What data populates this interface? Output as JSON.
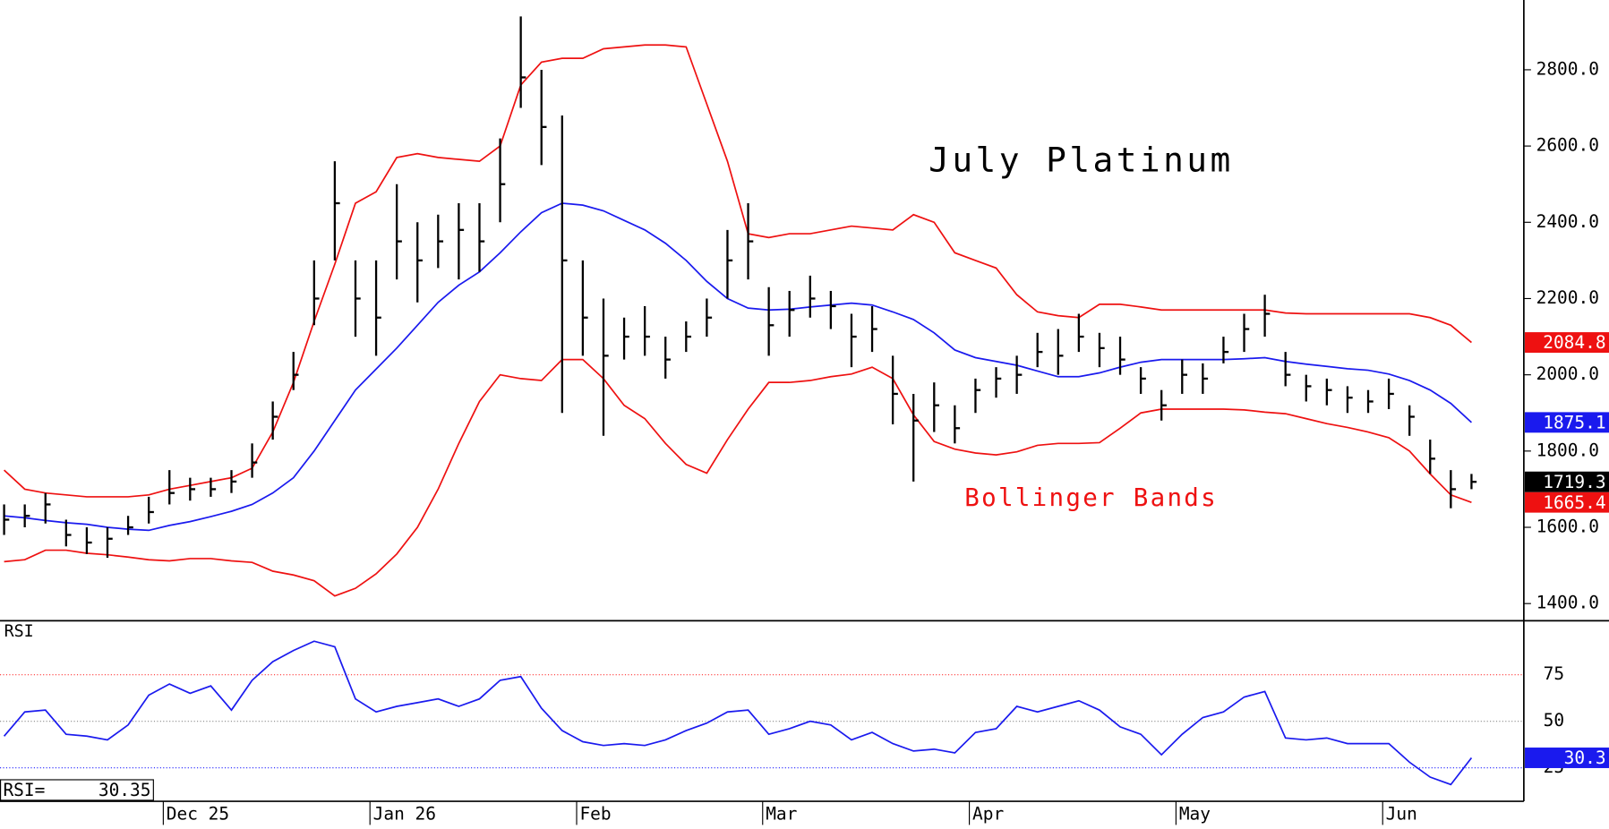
{
  "chart_data": [
    {
      "type": "ohlc",
      "title": "July Platinum",
      "annotation": "Bollinger Bands",
      "annotation_color": "#ee1111",
      "color": "#000000",
      "high": [
        1660,
        1660,
        1690,
        1620,
        1600,
        1600,
        1630,
        1680,
        1750,
        1730,
        1730,
        1750,
        1820,
        1930,
        2060,
        2300,
        2560,
        2300,
        2300,
        2500,
        2400,
        2420,
        2450,
        2450,
        2620,
        2940,
        2800,
        2680,
        2300,
        2200,
        2150,
        2180,
        2100,
        2140,
        2200,
        2380,
        2450,
        2230,
        2220,
        2260,
        2220,
        2160,
        2180,
        2050,
        1950,
        1980,
        1920,
        1990,
        2020,
        2050,
        2110,
        2120,
        2160,
        2110,
        2100,
        2020,
        1960,
        2040,
        2030,
        2100,
        2160,
        2210,
        2060,
        2000,
        1990,
        1970,
        1960,
        1990,
        1920,
        1830,
        1750,
        1740
      ],
      "low": [
        1580,
        1600,
        1610,
        1550,
        1530,
        1520,
        1580,
        1610,
        1660,
        1670,
        1680,
        1690,
        1730,
        1830,
        1960,
        2130,
        2300,
        2100,
        2050,
        2250,
        2190,
        2280,
        2250,
        2270,
        2400,
        2700,
        2550,
        1900,
        2050,
        1840,
        2040,
        2050,
        1990,
        2060,
        2100,
        2200,
        2250,
        2050,
        2100,
        2150,
        2120,
        2020,
        2060,
        1870,
        1720,
        1850,
        1820,
        1900,
        1940,
        1950,
        2020,
        2000,
        2060,
        2020,
        2000,
        1950,
        1880,
        1950,
        1950,
        2030,
        2060,
        2100,
        1970,
        1930,
        1920,
        1900,
        1900,
        1910,
        1840,
        1740,
        1650,
        1700
      ],
      "close": [
        1620,
        1630,
        1660,
        1580,
        1560,
        1570,
        1600,
        1640,
        1690,
        1700,
        1700,
        1720,
        1770,
        1890,
        2000,
        2200,
        2450,
        2200,
        2150,
        2350,
        2300,
        2350,
        2380,
        2350,
        2500,
        2780,
        2650,
        2300,
        2150,
        2050,
        2100,
        2100,
        2040,
        2100,
        2150,
        2300,
        2350,
        2130,
        2170,
        2200,
        2180,
        2100,
        2120,
        1950,
        1880,
        1920,
        1860,
        1960,
        1990,
        2000,
        2060,
        2050,
        2100,
        2070,
        2040,
        1990,
        1920,
        2000,
        1990,
        2060,
        2120,
        2160,
        2000,
        1970,
        1960,
        1940,
        1930,
        1950,
        1890,
        1780,
        1700,
        1719.3
      ],
      "bands": [
        {
          "color": "#ee1111",
          "values": [
            1750,
            1700,
            1690,
            1685,
            1680,
            1680,
            1680,
            1685,
            1700,
            1710,
            1720,
            1730,
            1755,
            1850,
            1980,
            2140,
            2290,
            2450,
            2480,
            2570,
            2580,
            2570,
            2565,
            2560,
            2600,
            2760,
            2820,
            2830,
            2830,
            2855,
            2860,
            2865,
            2865,
            2860,
            2710,
            2560,
            2370,
            2360,
            2370,
            2370,
            2380,
            2390,
            2385,
            2380,
            2420,
            2400,
            2320,
            2300,
            2280,
            2210,
            2165,
            2155,
            2150,
            2185,
            2185,
            2178,
            2170,
            2170,
            2170,
            2170,
            2170,
            2170,
            2162,
            2160,
            2160,
            2160,
            2160,
            2160,
            2160,
            2150,
            2130,
            2084.8
          ]
        },
        {
          "color": "#1a1aee",
          "values": [
            1630,
            1625,
            1618,
            1612,
            1608,
            1600,
            1595,
            1592,
            1605,
            1615,
            1628,
            1642,
            1660,
            1690,
            1730,
            1800,
            1880,
            1960,
            2015,
            2070,
            2130,
            2190,
            2235,
            2270,
            2320,
            2375,
            2425,
            2450,
            2445,
            2430,
            2405,
            2380,
            2345,
            2300,
            2245,
            2200,
            2175,
            2170,
            2172,
            2178,
            2183,
            2188,
            2183,
            2165,
            2145,
            2110,
            2065,
            2045,
            2035,
            2025,
            2010,
            1995,
            1995,
            2005,
            2020,
            2033,
            2040,
            2040,
            2040,
            2040,
            2042,
            2045,
            2035,
            2028,
            2022,
            2016,
            2012,
            2002,
            1985,
            1960,
            1925,
            1875.1
          ]
        },
        {
          "color": "#ee1111",
          "values": [
            1510,
            1515,
            1540,
            1540,
            1532,
            1528,
            1522,
            1515,
            1512,
            1518,
            1518,
            1512,
            1508,
            1485,
            1475,
            1460,
            1420,
            1440,
            1478,
            1530,
            1600,
            1700,
            1820,
            1930,
            2000,
            1990,
            1985,
            2040,
            2040,
            1990,
            1920,
            1885,
            1820,
            1765,
            1742,
            1830,
            1910,
            1980,
            1980,
            1985,
            1995,
            2002,
            2020,
            1990,
            1895,
            1825,
            1805,
            1795,
            1790,
            1798,
            1815,
            1820,
            1820,
            1822,
            1860,
            1900,
            1910,
            1910,
            1910,
            1910,
            1908,
            1902,
            1898,
            1885,
            1872,
            1862,
            1850,
            1835,
            1800,
            1740,
            1685,
            1665.4
          ]
        }
      ],
      "ylim": [
        1355,
        2983
      ],
      "yticks": [
        {
          "value": 1400,
          "label": "1400.0"
        },
        {
          "value": 1600,
          "label": "1600.0"
        },
        {
          "value": 1800,
          "label": "1800.0"
        },
        {
          "value": 2000,
          "label": "2000.0"
        },
        {
          "value": 2200,
          "label": "2200.0"
        },
        {
          "value": 2400,
          "label": "2400.0"
        },
        {
          "value": 2600,
          "label": "2600.0"
        },
        {
          "value": 2800,
          "label": "2800.0"
        }
      ]
    },
    {
      "type": "line",
      "title": "RSI",
      "readout_label": "RSI=",
      "color": "#1a1aee",
      "categories": [
        null,
        null,
        null,
        null,
        null,
        null,
        null,
        null,
        "Dec 25",
        null,
        null,
        null,
        null,
        null,
        null,
        null,
        null,
        null,
        "Jan 26",
        null,
        null,
        null,
        null,
        null,
        null,
        null,
        null,
        null,
        "Feb",
        null,
        null,
        null,
        null,
        null,
        null,
        null,
        null,
        "Mar",
        null,
        null,
        null,
        null,
        null,
        null,
        null,
        null,
        null,
        "Apr",
        null,
        null,
        null,
        null,
        null,
        null,
        null,
        null,
        null,
        "May",
        null,
        null,
        null,
        null,
        null,
        null,
        null,
        null,
        null,
        "Jun",
        null,
        null,
        null,
        null
      ],
      "values": [
        42,
        55,
        56,
        43,
        42,
        40,
        48,
        64,
        70,
        65,
        69,
        56,
        72,
        82,
        88,
        93,
        90,
        62,
        55,
        58,
        60,
        62,
        58,
        62,
        72,
        74,
        57,
        45,
        39,
        37,
        38,
        37,
        40,
        45,
        49,
        55,
        56,
        43,
        46,
        50,
        48,
        40,
        44,
        38,
        34,
        35,
        33,
        44,
        46,
        58,
        55,
        58,
        61,
        56,
        47,
        43,
        32,
        43,
        52,
        55,
        63,
        66,
        41,
        40,
        41,
        38,
        38,
        38,
        28,
        20,
        16,
        30.35
      ],
      "value_labels": [
        null,
        null,
        null,
        null,
        null,
        null,
        null,
        null,
        null,
        null,
        null,
        null,
        null,
        null,
        null,
        null,
        null,
        null,
        null,
        null,
        null,
        null,
        null,
        null,
        null,
        null,
        null,
        null,
        null,
        null,
        null,
        null,
        null,
        null,
        null,
        null,
        null,
        null,
        null,
        null,
        null,
        null,
        null,
        null,
        null,
        null,
        null,
        null,
        null,
        null,
        null,
        null,
        null,
        null,
        null,
        null,
        null,
        null,
        null,
        null,
        null,
        null,
        null,
        null,
        null,
        null,
        null,
        null,
        null,
        null,
        null,
        "30.3"
      ],
      "ylim": [
        7,
        104
      ],
      "yticks": [
        25,
        50,
        75
      ],
      "ytick_line_colors": [
        "#3333ff",
        "#888888",
        "#ff3333"
      ]
    }
  ]
}
